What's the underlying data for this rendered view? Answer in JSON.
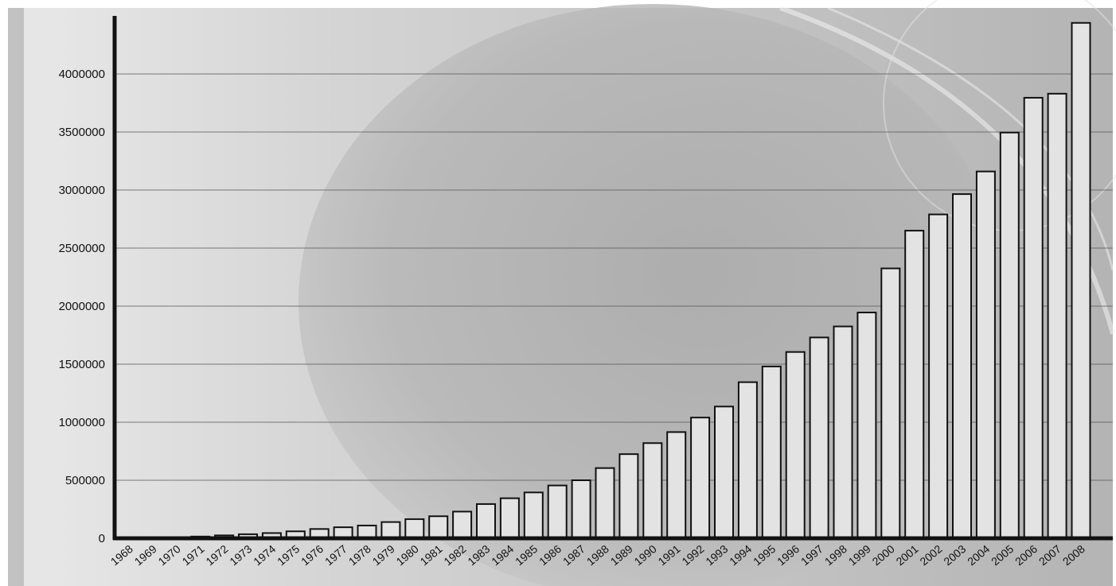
{
  "chart_data": {
    "type": "bar",
    "title": "",
    "xlabel": "",
    "ylabel": "",
    "categories": [
      "1968",
      "1969",
      "1970",
      "1971",
      "1972",
      "1973",
      "1974",
      "1975",
      "1976",
      "1977",
      "1978",
      "1979",
      "1980",
      "1981",
      "1982",
      "1983",
      "1984",
      "1985",
      "1986",
      "1987",
      "1988",
      "1989",
      "1990",
      "1991",
      "1992",
      "1993",
      "1994",
      "1995",
      "1996",
      "1997",
      "1998",
      "1999",
      "2000",
      "2001",
      "2002",
      "2003",
      "2004",
      "2005",
      "2006",
      "2007",
      "2008"
    ],
    "values": [
      2000,
      4000,
      8000,
      15000,
      25000,
      35000,
      45000,
      60000,
      80000,
      95000,
      110000,
      140000,
      165000,
      190000,
      230000,
      295000,
      345000,
      395000,
      455000,
      500000,
      605000,
      725000,
      820000,
      915000,
      1040000,
      1135000,
      1345000,
      1480000,
      1605000,
      1730000,
      1825000,
      1945000,
      2325000,
      2650000,
      2790000,
      2965000,
      3160000,
      3495000,
      3795000,
      3830000,
      4440000
    ],
    "ylim": [
      0,
      4500000
    ],
    "yticks": [
      0,
      500000,
      1000000,
      1500000,
      2000000,
      2500000,
      3000000,
      3500000,
      4000000
    ],
    "ytick_labels": [
      "0",
      "500000",
      "1000000",
      "1500000",
      "2000000",
      "2500000",
      "3000000",
      "3500000",
      "4000000"
    ],
    "grid": true,
    "legend": "none",
    "colors": {
      "bar_fill": "#e3e3e3",
      "bar_stroke": "#111111",
      "axis": "#111111"
    }
  }
}
